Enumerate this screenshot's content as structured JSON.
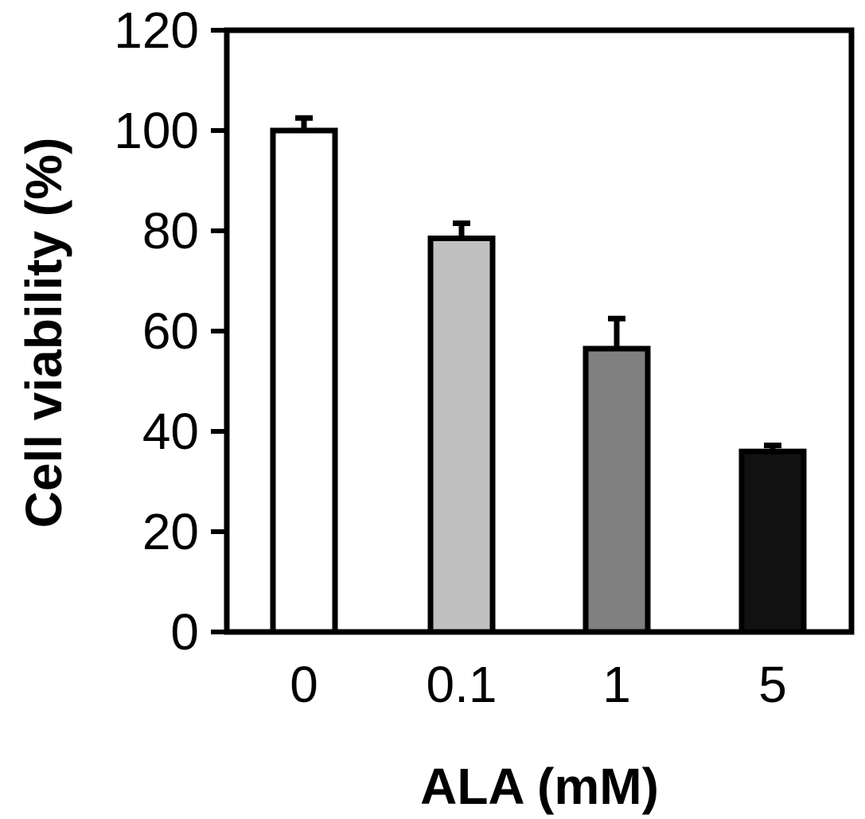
{
  "chart_data": {
    "type": "bar",
    "title": "",
    "xlabel": "ALA (mM)",
    "ylabel": "Cell viability (%)",
    "categories": [
      "0",
      "0.1",
      "1",
      "5"
    ],
    "values": [
      100,
      78.5,
      56.5,
      36
    ],
    "errors": [
      2.5,
      3,
      6,
      1.2
    ],
    "ylim": [
      0,
      120
    ],
    "yticks": [
      0,
      20,
      40,
      60,
      80,
      100,
      120
    ],
    "ytick_labels": [
      "0",
      "20",
      "40",
      "60",
      "80",
      "100",
      "120"
    ],
    "bar_colors": [
      "#ffffff",
      "#c0c0c0",
      "#808080",
      "#111111"
    ],
    "grid": false,
    "legend": "none"
  }
}
